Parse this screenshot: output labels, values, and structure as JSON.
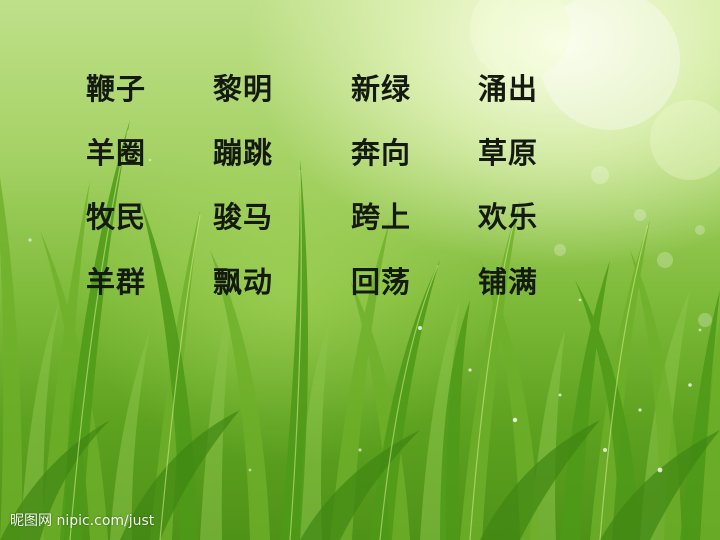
{
  "words": [
    [
      "鞭子",
      "黎明",
      "新绿",
      "涌出"
    ],
    [
      "羊圈",
      "蹦跳",
      "奔向",
      "草原"
    ],
    [
      "牧民",
      "骏马",
      "跨上",
      "欢乐"
    ],
    [
      "羊群",
      "飘动",
      "回荡",
      "铺满"
    ]
  ],
  "watermark": "昵图网 nipic.com/just",
  "colors": {
    "text": "#141a10",
    "grass_light": "#bfe08a",
    "grass_dark": "#4f9218",
    "glow": "#fcffec"
  }
}
